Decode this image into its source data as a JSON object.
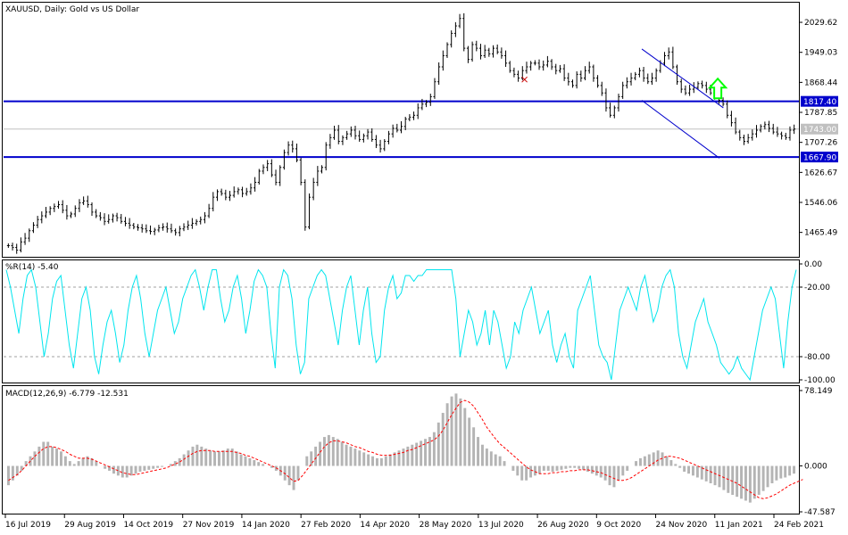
{
  "chart_data": [
    {
      "type": "candlestick",
      "title": "XAUUSD, Daily:  Gold vs US Dollar",
      "price_axis": {
        "ylim": [
          1400,
          2080
        ],
        "ticks": [
          "2029.62",
          "1949.03",
          "1868.44",
          "1787.85",
          "1707.26",
          "1626.67",
          "1546.06",
          "1465.49"
        ]
      },
      "horizontal_lines": [
        {
          "label": "1817.40",
          "value": 1817.4,
          "color": "#0000cc"
        },
        {
          "label": "1667.90",
          "value": 1667.9,
          "color": "#0000cc"
        }
      ],
      "current_price": {
        "label": "1743.00",
        "value": 1743.0,
        "color": "#c0c0c0"
      },
      "channel": [
        {
          "upper": [
            [
              0.8025,
              1958
            ],
            [
              0.905,
              1800
            ]
          ],
          "lower": [
            [
              0.8025,
              1820
            ],
            [
              0.9,
              1665
            ]
          ]
        }
      ],
      "signal_arrow": {
        "direction": "up",
        "color": "#00ff00",
        "x_frac": 0.898,
        "value": 1840
      },
      "marker_x": {
        "x_frac": 0.655,
        "value": 1876
      },
      "closes": [
        1430,
        1425,
        1418,
        1440,
        1450,
        1470,
        1485,
        1500,
        1510,
        1520,
        1530,
        1535,
        1540,
        1525,
        1510,
        1515,
        1530,
        1545,
        1550,
        1540,
        1520,
        1510,
        1505,
        1495,
        1500,
        1510,
        1505,
        1495,
        1490,
        1485,
        1480,
        1478,
        1475,
        1470,
        1468,
        1472,
        1478,
        1480,
        1475,
        1470,
        1465,
        1475,
        1480,
        1485,
        1490,
        1495,
        1500,
        1510,
        1530,
        1560,
        1575,
        1570,
        1560,
        1565,
        1575,
        1580,
        1570,
        1575,
        1585,
        1600,
        1630,
        1640,
        1650,
        1620,
        1600,
        1640,
        1680,
        1700,
        1690,
        1660,
        1600,
        1480,
        1560,
        1600,
        1630,
        1640,
        1700,
        1720,
        1740,
        1710,
        1720,
        1730,
        1740,
        1725,
        1715,
        1725,
        1735,
        1715,
        1700,
        1690,
        1710,
        1730,
        1745,
        1740,
        1750,
        1770,
        1775,
        1780,
        1800,
        1810,
        1815,
        1830,
        1870,
        1910,
        1940,
        1970,
        2000,
        2020,
        2040,
        1960,
        1930,
        1970,
        1960,
        1940,
        1955,
        1945,
        1960,
        1950,
        1940,
        1920,
        1900,
        1890,
        1880,
        1900,
        1910,
        1920,
        1920,
        1910,
        1915,
        1925,
        1910,
        1900,
        1905,
        1880,
        1870,
        1860,
        1890,
        1880,
        1900,
        1910,
        1880,
        1860,
        1840,
        1800,
        1780,
        1800,
        1830,
        1860,
        1870,
        1880,
        1890,
        1900,
        1880,
        1870,
        1880,
        1900,
        1920,
        1940,
        1950,
        1910,
        1870,
        1850,
        1840,
        1850,
        1855,
        1865,
        1860,
        1850,
        1840,
        1830,
        1820,
        1810,
        1780,
        1760,
        1735,
        1720,
        1710,
        1720,
        1730,
        1740,
        1750,
        1755,
        1745,
        1735,
        1730,
        1725,
        1720,
        1740,
        1743
      ],
      "x_labels": [
        "16 Jul 2019",
        "29 Aug 2019",
        "14 Oct 2019",
        "27 Nov 2019",
        "14 Jan 2020",
        "27 Feb 2020",
        "14 Apr 2020",
        "28 May 2020",
        "13 Jul 2020",
        "26 Aug 2020",
        "9 Oct 2020",
        "24 Nov 2020",
        "11 Jan 2021",
        "24 Feb 2021"
      ]
    },
    {
      "type": "line",
      "title": "%R(14) -5.40",
      "ylim": [
        -100,
        0
      ],
      "ticks": [
        "0.00",
        "-20.00",
        "-80.00",
        "-100.00"
      ],
      "levels": [
        -20,
        -80
      ],
      "color": "#00e5ee",
      "values": [
        -5,
        -20,
        -40,
        -60,
        -30,
        -10,
        -5,
        -20,
        -50,
        -80,
        -60,
        -30,
        -15,
        -10,
        -40,
        -70,
        -90,
        -60,
        -30,
        -20,
        -40,
        -80,
        -95,
        -70,
        -50,
        -40,
        -60,
        -85,
        -70,
        -40,
        -20,
        -10,
        -30,
        -60,
        -80,
        -60,
        -40,
        -30,
        -20,
        -40,
        -60,
        -50,
        -30,
        -20,
        -10,
        -5,
        -20,
        -40,
        -20,
        -5,
        -5,
        -30,
        -50,
        -40,
        -20,
        -10,
        -30,
        -60,
        -40,
        -15,
        -5,
        -10,
        -20,
        -60,
        -90,
        -20,
        -5,
        -10,
        -30,
        -70,
        -95,
        -85,
        -30,
        -20,
        -10,
        -5,
        -10,
        -30,
        -50,
        -70,
        -40,
        -20,
        -10,
        -40,
        -70,
        -40,
        -20,
        -60,
        -85,
        -80,
        -40,
        -20,
        -10,
        -30,
        -25,
        -10,
        -10,
        -15,
        -10,
        -10,
        -5,
        -5,
        -5,
        -5,
        -5,
        -5,
        -5,
        -30,
        -80,
        -60,
        -40,
        -50,
        -70,
        -60,
        -40,
        -70,
        -40,
        -50,
        -70,
        -90,
        -80,
        -50,
        -60,
        -40,
        -30,
        -20,
        -40,
        -60,
        -50,
        -40,
        -70,
        -85,
        -70,
        -60,
        -80,
        -90,
        -40,
        -30,
        -20,
        -10,
        -40,
        -70,
        -80,
        -85,
        -100,
        -70,
        -40,
        -30,
        -20,
        -30,
        -40,
        -20,
        -10,
        -30,
        -50,
        -40,
        -20,
        -10,
        -5,
        -20,
        -60,
        -80,
        -90,
        -70,
        -50,
        -40,
        -30,
        -50,
        -60,
        -70,
        -85,
        -90,
        -95,
        -90,
        -80,
        -90,
        -95,
        -100,
        -80,
        -60,
        -40,
        -30,
        -20,
        -30,
        -60,
        -90,
        -50,
        -20,
        -5
      ]
    },
    {
      "type": "bar",
      "title": "MACD(12,26,9) -6.779 -12.531",
      "ylim": [
        -47.587,
        78.149
      ],
      "ticks": [
        "78.149",
        "0.000",
        "-47.587"
      ],
      "signal_color": "#ff0000",
      "histogram_color": "#b4b4b4",
      "histogram": [
        -20,
        -15,
        -10,
        -5,
        5,
        10,
        15,
        20,
        25,
        25,
        20,
        18,
        15,
        10,
        5,
        2,
        5,
        8,
        10,
        8,
        5,
        0,
        -3,
        -5,
        -8,
        -10,
        -12,
        -12,
        -10,
        -8,
        -6,
        -5,
        -4,
        -3,
        -2,
        -1,
        0,
        2,
        5,
        8,
        12,
        16,
        20,
        22,
        20,
        18,
        16,
        15,
        15,
        16,
        18,
        18,
        15,
        12,
        10,
        8,
        6,
        4,
        2,
        0,
        -2,
        -5,
        -10,
        -15,
        -20,
        -25,
        -15,
        0,
        10,
        15,
        20,
        25,
        30,
        32,
        30,
        28,
        25,
        22,
        20,
        18,
        16,
        14,
        12,
        10,
        8,
        8,
        10,
        12,
        14,
        16,
        18,
        20,
        22,
        24,
        26,
        28,
        30,
        35,
        45,
        55,
        65,
        72,
        75,
        70,
        60,
        50,
        40,
        30,
        22,
        18,
        15,
        12,
        10,
        5,
        0,
        -5,
        -10,
        -15,
        -15,
        -12,
        -10,
        -8,
        -5,
        -5,
        -6,
        -5,
        -4,
        -3,
        -2,
        -2,
        -3,
        -4,
        -6,
        -8,
        -10,
        -12,
        -15,
        -20,
        -22,
        -15,
        -10,
        -5,
        0,
        5,
        8,
        10,
        12,
        14,
        16,
        14,
        10,
        6,
        2,
        -2,
        -6,
        -8,
        -10,
        -12,
        -14,
        -16,
        -18,
        -20,
        -22,
        -25,
        -28,
        -30,
        -32,
        -34,
        -36,
        -38,
        -34,
        -30,
        -26,
        -22,
        -18,
        -15,
        -13,
        -12,
        -10,
        -8
      ],
      "signal": [
        -15,
        -12,
        -9,
        -5,
        0,
        5,
        10,
        14,
        18,
        20,
        20,
        19,
        17,
        15,
        12,
        10,
        8,
        8,
        8,
        7,
        5,
        3,
        1,
        -1,
        -3,
        -5,
        -7,
        -8,
        -9,
        -9,
        -8,
        -7,
        -6,
        -5,
        -4,
        -3,
        -2,
        0,
        2,
        4,
        7,
        10,
        13,
        15,
        16,
        16,
        16,
        15,
        15,
        15,
        15,
        15,
        14,
        13,
        11,
        10,
        8,
        6,
        4,
        2,
        0,
        -2,
        -5,
        -8,
        -12,
        -16,
        -15,
        -10,
        -4,
        2,
        8,
        14,
        20,
        24,
        26,
        26,
        25,
        24,
        22,
        20,
        19,
        17,
        15,
        14,
        12,
        11,
        11,
        11,
        12,
        13,
        14,
        16,
        17,
        19,
        21,
        23,
        25,
        27,
        31,
        37,
        45,
        53,
        60,
        66,
        68,
        66,
        62,
        55,
        48,
        40,
        34,
        28,
        23,
        19,
        15,
        11,
        7,
        3,
        -1,
        -4,
        -6,
        -8,
        -8,
        -8,
        -7,
        -7,
        -6,
        -6,
        -5,
        -5,
        -4,
        -4,
        -4,
        -5,
        -6,
        -7,
        -9,
        -11,
        -13,
        -15,
        -15,
        -14,
        -12,
        -9,
        -6,
        -3,
        0,
        3,
        6,
        8,
        10,
        10,
        9,
        8,
        6,
        4,
        2,
        0,
        -2,
        -4,
        -6,
        -8,
        -10,
        -12,
        -14,
        -16,
        -18,
        -21,
        -24,
        -27,
        -30,
        -33,
        -34,
        -33,
        -31,
        -29,
        -26,
        -23,
        -20,
        -18,
        -16,
        -14
      ]
    }
  ],
  "price_badges": {
    "upper_line": "1817.40",
    "current": "1743.00",
    "lower_line": "1667.90"
  }
}
